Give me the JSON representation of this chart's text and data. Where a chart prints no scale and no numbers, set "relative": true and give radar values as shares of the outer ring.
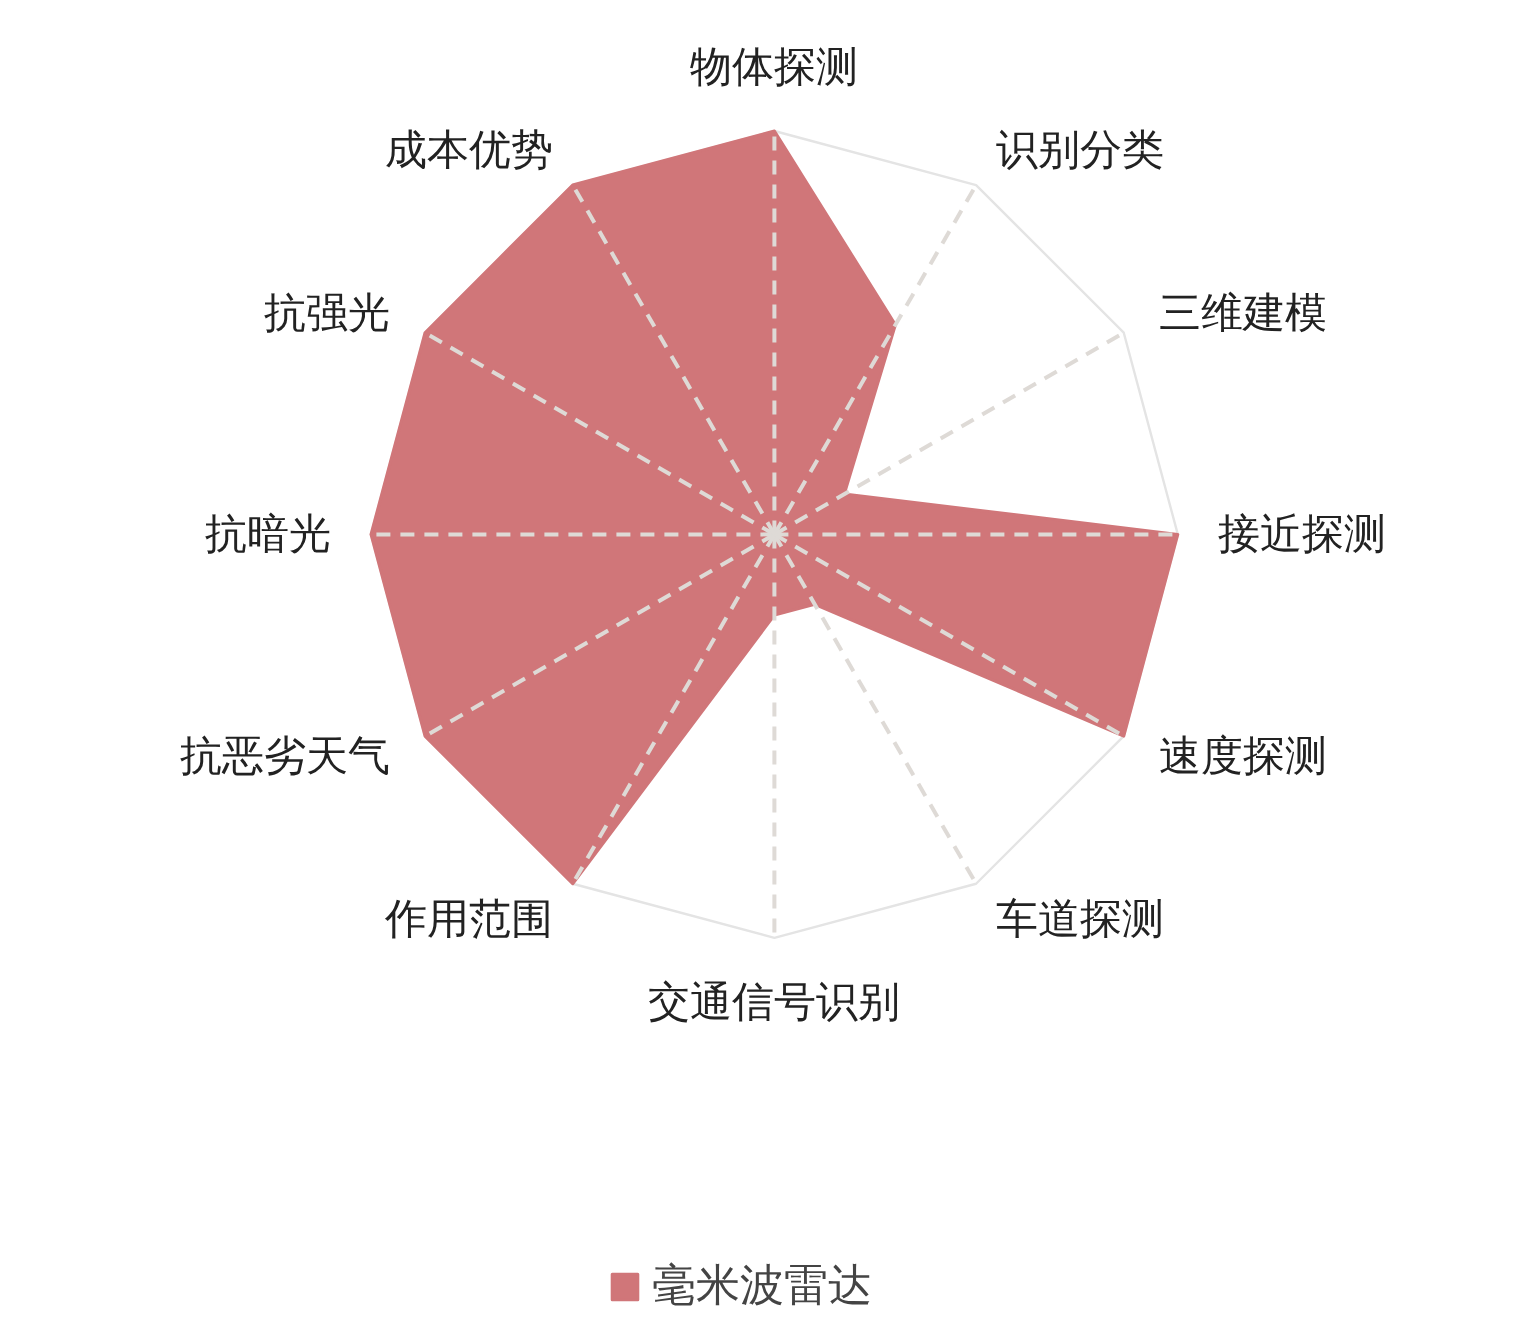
{
  "chart_data": {
    "type": "radar",
    "categories": [
      "物体探测",
      "识别分类",
      "三维建模",
      "接近探测",
      "速度探测",
      "车道探测",
      "交通信号识别",
      "作用范围",
      "抗恶劣天气",
      "抗暗光",
      "抗强光",
      "成本优势"
    ],
    "relative": true,
    "series": [
      {
        "name": "毫米波雷达",
        "color": "#d07679",
        "values": [
          1,
          0.6,
          0.2,
          1,
          1,
          0.2,
          0.2,
          1,
          1,
          1,
          1,
          1
        ]
      }
    ],
    "grid": true,
    "legend": "bottom"
  }
}
